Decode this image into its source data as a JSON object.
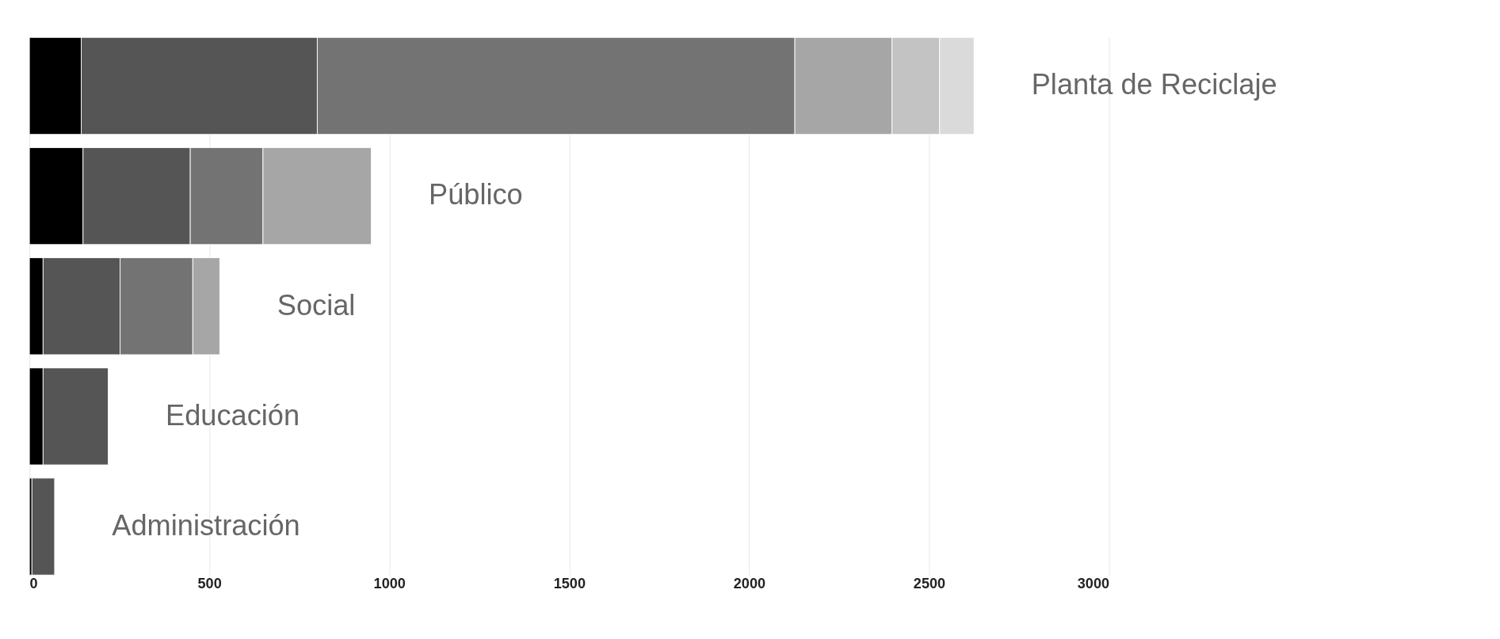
{
  "chart_data": {
    "type": "bar",
    "orientation": "horizontal",
    "stacked": true,
    "categories": [
      "Planta de Reciclaje",
      "Público",
      "Social",
      "Educación",
      "Administración"
    ],
    "series": [
      {
        "color": "#000000",
        "values": [
          144,
          149,
          38,
          38,
          7
        ]
      },
      {
        "color": "#555555",
        "values": [
          656,
          298,
          214,
          181,
          63
        ]
      },
      {
        "color": "#737373",
        "values": [
          1327,
          202,
          202,
          null,
          null
        ]
      },
      {
        "color": "#a6a6a6",
        "values": [
          270,
          301,
          75,
          null,
          null
        ]
      },
      {
        "color": "#c3c3c3",
        "values": [
          132,
          null,
          null,
          null,
          null
        ]
      },
      {
        "color": "#dadada",
        "values": [
          96,
          null,
          null,
          null,
          null
        ]
      }
    ],
    "xlim": [
      0,
      3000
    ],
    "xticks": [
      0,
      500,
      1000,
      1500,
      2000,
      2500,
      3000
    ],
    "grid": "x",
    "tick_labels": "x",
    "legend": false
  }
}
